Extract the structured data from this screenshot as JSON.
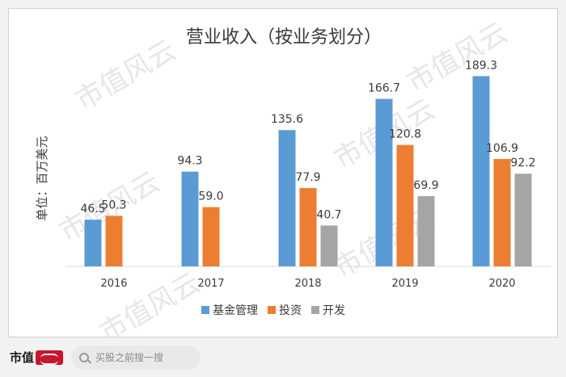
{
  "chart_data": {
    "type": "bar",
    "title": "营业收入（按业务划分）",
    "ylabel": "单位：百万美元",
    "xlabel": "",
    "categories": [
      "2016",
      "2017",
      "2018",
      "2019",
      "2020"
    ],
    "series": [
      {
        "name": "基金管理",
        "values": [
          46.5,
          94.3,
          135.6,
          166.7,
          189.3
        ],
        "labels": [
          "46.5",
          "94.3",
          "135.6",
          "166.7",
          "189.3"
        ],
        "color": "#5b9bd5"
      },
      {
        "name": "投资",
        "values": [
          50.3,
          59.0,
          77.9,
          120.8,
          106.9
        ],
        "labels": [
          "50.3",
          "59.0",
          "77.9",
          "120.8",
          "106.9"
        ],
        "color": "#ed7d31"
      },
      {
        "name": "开发",
        "values": [
          null,
          null,
          40.7,
          69.9,
          92.2
        ],
        "labels": [
          "",
          "",
          "40.7",
          "69.9",
          "92.2"
        ],
        "color": "#a5a5a5"
      }
    ],
    "ylim": [
      0,
      200
    ],
    "grid": false,
    "legend_position": "bottom"
  },
  "watermark": "市值风云",
  "footer": {
    "brand": "市值",
    "search_placeholder": "买股之前搜一搜"
  }
}
